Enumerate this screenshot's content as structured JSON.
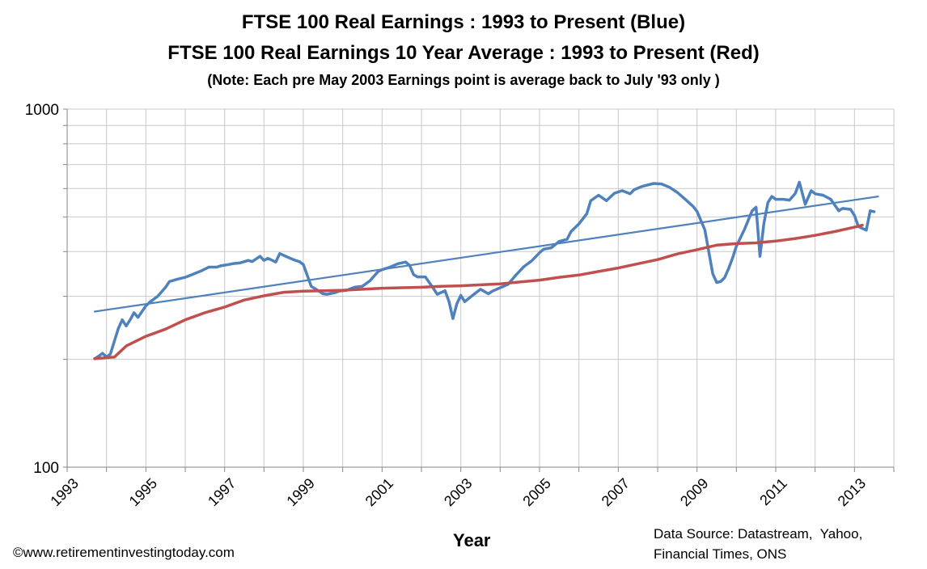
{
  "chart_data": {
    "type": "line",
    "title": "FTSE 100 Real Earnings : 1993 to Present (Blue)",
    "subtitle": "FTSE 100 Real Earnings 10 Year Average : 1993 to Present (Red)",
    "note": "(Note:  Each pre May 2003 Earnings point is average  back to July '93 only )",
    "xlabel": "Year",
    "ylabel": "",
    "yscale": "log",
    "ylim": [
      100,
      1000
    ],
    "xlim": [
      1993,
      2014
    ],
    "y_tick_labels": [
      "1000",
      "100"
    ],
    "x_tick_labels": [
      "1993",
      "1995",
      "1997",
      "1999",
      "2001",
      "2003",
      "2005",
      "2007",
      "2009",
      "2011",
      "2013"
    ],
    "grid": true,
    "colors": {
      "blue": "#4f81bd",
      "red": "#c0504d",
      "trend": "#4f81bd",
      "grid": "#c8c8c8"
    },
    "series": [
      {
        "color": "blue",
        "x": [
          1993.7,
          1993.8,
          1993.9,
          1994.0,
          1994.1,
          1994.2,
          1994.3,
          1994.4,
          1994.5,
          1994.6,
          1994.7,
          1994.8,
          1994.9,
          1995.0,
          1995.1,
          1995.3,
          1995.5,
          1995.6,
          1995.8,
          1996.0,
          1996.2,
          1996.4,
          1996.6,
          1996.8,
          1996.9,
          1997.1,
          1997.2,
          1997.4,
          1997.6,
          1997.7,
          1997.9,
          1998.0,
          1998.1,
          1998.3,
          1998.4,
          1998.6,
          1998.8,
          1998.9,
          1999.0,
          1999.2,
          1999.4,
          1999.5,
          1999.6,
          1999.8,
          1999.9,
          2000.1,
          2000.3,
          2000.5,
          2000.7,
          2000.8,
          2000.9,
          2001.0,
          2001.2,
          2001.4,
          2001.6,
          2001.7,
          2001.8,
          2001.9,
          2002.1,
          2002.3,
          2002.4,
          2002.6,
          2002.7,
          2002.8,
          2002.9,
          2003.0,
          2003.1,
          2003.3,
          2003.5,
          2003.7,
          2003.8,
          2004.0,
          2004.2,
          2004.4,
          2004.6,
          2004.8,
          2005.0,
          2005.1,
          2005.3,
          2005.5,
          2005.7,
          2005.8,
          2006.0,
          2006.2,
          2006.3,
          2006.5,
          2006.7,
          2006.9,
          2007.1,
          2007.3,
          2007.4,
          2007.6,
          2007.9,
          2008.1,
          2008.3,
          2008.5,
          2008.7,
          2008.9,
          2009.0,
          2009.2,
          2009.4,
          2009.5,
          2009.6,
          2009.7,
          2009.8,
          2009.9,
          2010.0,
          2010.2,
          2010.4,
          2010.5,
          2010.6,
          2010.7,
          2010.8,
          2010.9,
          2011.0,
          2011.2,
          2011.35,
          2011.5,
          2011.6,
          2011.75,
          2011.9,
          2012.0,
          2012.2,
          2012.4,
          2012.6,
          2012.7,
          2012.9,
          2013.0,
          2013.1,
          2013.3,
          2013.4,
          2013.5
        ],
        "values": [
          201,
          204,
          208,
          203,
          207,
          225,
          244,
          258,
          248,
          258,
          270,
          262,
          272,
          282,
          289,
          300,
          318,
          330,
          335,
          339,
          346,
          353,
          362,
          362,
          365,
          368,
          370,
          372,
          378,
          375,
          388,
          378,
          383,
          374,
          395,
          386,
          378,
          375,
          368,
          320,
          310,
          305,
          304,
          307,
          310,
          312,
          318,
          320,
          332,
          342,
          352,
          356,
          362,
          370,
          374,
          366,
          345,
          340,
          340,
          316,
          304,
          311,
          290,
          260,
          286,
          302,
          290,
          302,
          314,
          305,
          310,
          317,
          324,
          344,
          363,
          377,
          397,
          406,
          410,
          427,
          433,
          455,
          478,
          510,
          555,
          575,
          555,
          582,
          592,
          580,
          595,
          608,
          620,
          618,
          605,
          585,
          560,
          535,
          518,
          460,
          347,
          328,
          330,
          338,
          358,
          383,
          414,
          460,
          520,
          532,
          388,
          480,
          548,
          570,
          560,
          560,
          557,
          582,
          625,
          542,
          592,
          580,
          575,
          560,
          520,
          528,
          525,
          505,
          470,
          459,
          520,
          517
        ]
      },
      {
        "color": "red",
        "x": [
          1993.7,
          1994.2,
          1994.5,
          1995.0,
          1995.5,
          1996.0,
          1996.5,
          1997.0,
          1997.5,
          1998.0,
          1998.5,
          1999.0,
          1999.5,
          2000.0,
          2000.5,
          2001.0,
          2001.5,
          2002.0,
          2002.5,
          2003.0,
          2003.5,
          2004.0,
          2004.5,
          2005.0,
          2005.5,
          2006.0,
          2006.5,
          2007.0,
          2007.5,
          2008.0,
          2008.5,
          2009.0,
          2009.5,
          2010.0,
          2010.5,
          2011.0,
          2011.5,
          2012.0,
          2012.5,
          2013.0,
          2013.2
        ],
        "values": [
          201,
          203,
          218,
          232,
          243,
          258,
          270,
          280,
          293,
          301,
          308,
          310,
          311,
          312,
          314,
          316,
          317,
          318,
          320,
          321,
          323,
          325,
          329,
          333,
          339,
          344,
          352,
          360,
          370,
          380,
          394,
          405,
          417,
          421,
          423,
          428,
          435,
          444,
          455,
          468,
          474
        ]
      },
      {
        "color": "trend",
        "x": [
          1993.7,
          2013.6
        ],
        "values": [
          272,
          570
        ]
      }
    ],
    "annotations": [
      "Data Source: Datastream,  Yahoo,",
      "Financial Times, ONS"
    ],
    "copyright": "©www.retirementinvestingtoday.com"
  }
}
